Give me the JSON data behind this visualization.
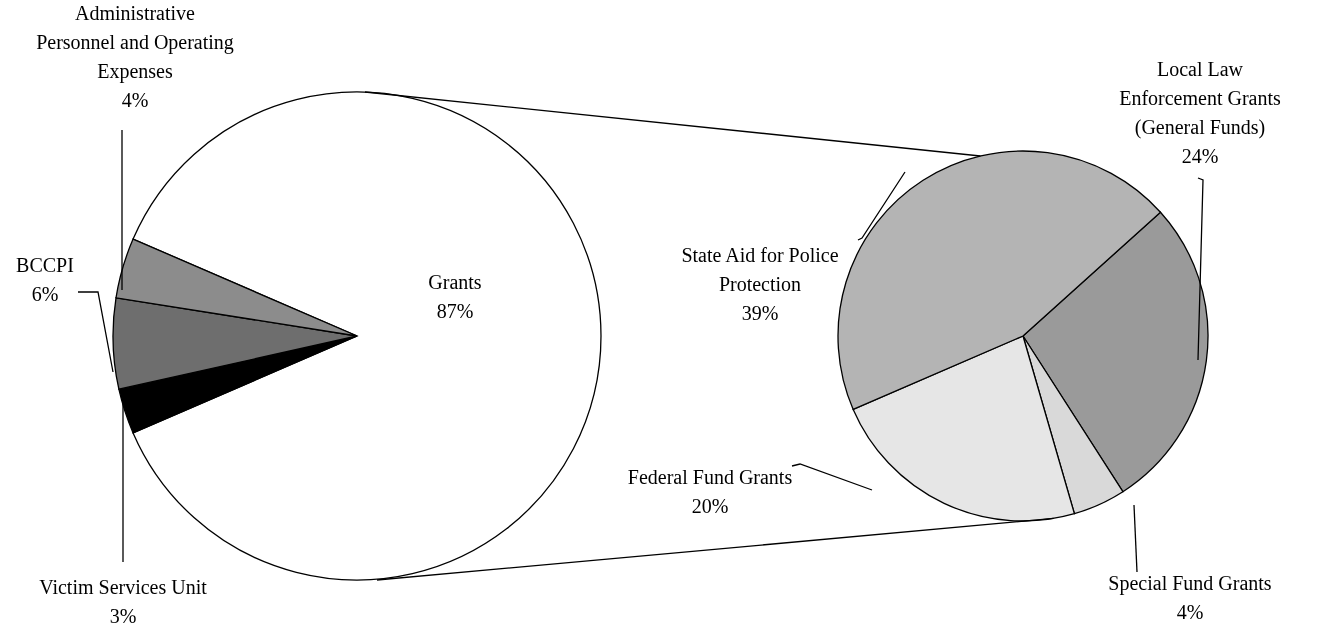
{
  "chart_data": [
    {
      "type": "pie",
      "categories": [
        "Grants",
        "Victim Services Unit",
        "BCCPI",
        "Administrative Personnel and Operating Expenses"
      ],
      "values": [
        87,
        3,
        6,
        4
      ],
      "value_labels": [
        "87%",
        "3%",
        "6%",
        "4%"
      ],
      "colors": [
        "#ffffff",
        "#000000",
        "#6e6e6e",
        "#8c8c8c"
      ]
    },
    {
      "type": "pie",
      "categories": [
        "Local Law Enforcement Grants (General Funds)",
        "Special Fund Grants",
        "Federal Fund Grants",
        "State Aid for Police Protection"
      ],
      "values": [
        24,
        4,
        20,
        39
      ],
      "value_labels": [
        "24%",
        "4%",
        "20%",
        "39%"
      ],
      "colors": [
        "#9a9a9a",
        "#d9d9d9",
        "#e6e6e6",
        "#b4b4b4"
      ]
    }
  ]
}
